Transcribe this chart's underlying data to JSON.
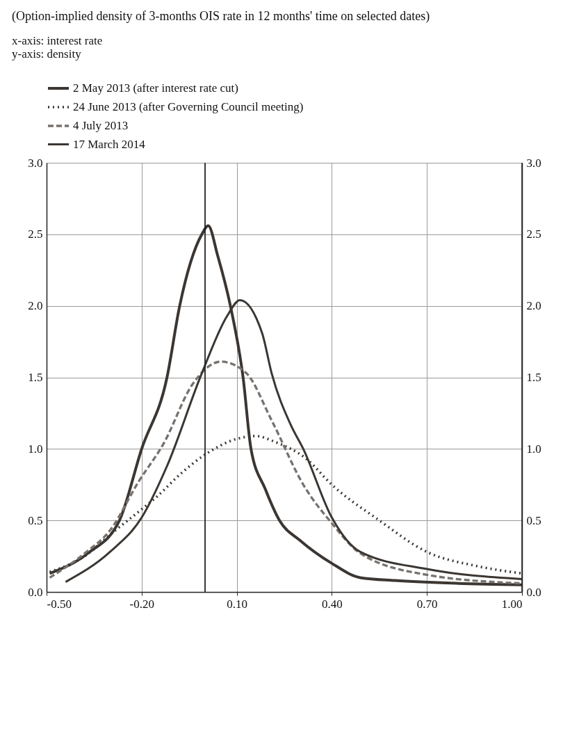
{
  "chart_data": {
    "type": "line",
    "title": "(Option-implied density of 3-months OIS rate in 12 months' time on selected dates)",
    "annotations": [
      "x-axis: interest rate",
      "y-axis: density"
    ],
    "series": [
      {
        "name": "2 May 2013 (after interest rate cut)",
        "color": "#3b3632",
        "line_style": "solid",
        "x": [
          -0.49,
          -0.37,
          -0.27,
          -0.2,
          -0.12,
          -0.08,
          -0.01,
          0.01,
          0.04,
          0.08,
          0.12,
          0.145,
          0.19,
          0.235,
          0.3,
          0.4,
          0.49,
          0.6,
          0.8,
          1.0
        ],
        "values": [
          0.13,
          0.27,
          0.5,
          1.0,
          1.5,
          2.0,
          2.5,
          2.56,
          2.35,
          2.0,
          1.5,
          1.0,
          0.72,
          0.5,
          0.36,
          0.2,
          0.1,
          0.08,
          0.06,
          0.05
        ]
      },
      {
        "name": "24 June 2013 (after Governing Council meeting)",
        "color": "#3b3632",
        "line_style": "dotted",
        "x": [
          -0.49,
          -0.38,
          -0.3,
          -0.21,
          -0.15,
          -0.08,
          0.0,
          0.1,
          0.16,
          0.22,
          0.32,
          0.4,
          0.55,
          0.7,
          0.86,
          1.0
        ],
        "values": [
          0.14,
          0.25,
          0.4,
          0.56,
          0.67,
          0.82,
          0.96,
          1.07,
          1.09,
          1.05,
          0.93,
          0.75,
          0.5,
          0.28,
          0.18,
          0.13
        ]
      },
      {
        "name": "4 July 2013",
        "color": "#77726e",
        "line_style": "dashed",
        "x": [
          -0.49,
          -0.38,
          -0.3,
          -0.21,
          -0.13,
          -0.04,
          0.05,
          0.13,
          0.21,
          0.31,
          0.4,
          0.49,
          0.7,
          1.0
        ],
        "values": [
          0.1,
          0.27,
          0.43,
          0.77,
          1.04,
          1.45,
          1.61,
          1.53,
          1.2,
          0.75,
          0.48,
          0.27,
          0.12,
          0.06
        ]
      },
      {
        "name": "17 March 2014",
        "color": "#3b3632",
        "line_style": "solid",
        "x": [
          -0.44,
          -0.3,
          -0.2,
          -0.12,
          -0.01,
          0.07,
          0.11,
          0.18,
          0.21,
          0.27,
          0.31,
          0.4,
          0.49,
          0.7,
          1.0
        ],
        "values": [
          0.07,
          0.28,
          0.52,
          0.88,
          1.53,
          1.93,
          2.04,
          1.81,
          1.53,
          1.17,
          1.0,
          0.52,
          0.28,
          0.16,
          0.09
        ]
      }
    ],
    "xlim": [
      -0.5,
      1.0
    ],
    "xticks": [
      {
        "value": -0.5,
        "label": "-0.50"
      },
      {
        "value": -0.2,
        "label": "-0.20"
      },
      {
        "value": 0.1,
        "label": "0.10"
      },
      {
        "value": 0.4,
        "label": "0.40"
      },
      {
        "value": 0.7,
        "label": "0.70"
      },
      {
        "value": 1.0,
        "label": "1.00"
      }
    ],
    "ylim": [
      0,
      3
    ],
    "yticks": [
      {
        "value": 0,
        "label": "0.0"
      },
      {
        "value": 0.5,
        "label": "0.5"
      },
      {
        "value": 1,
        "label": "1.0"
      },
      {
        "value": 1.5,
        "label": "1.5"
      },
      {
        "value": 2,
        "label": "2.0"
      },
      {
        "value": 2.5,
        "label": "2.5"
      },
      {
        "value": 3,
        "label": "3.0"
      }
    ],
    "y2lim": [
      0,
      3
    ],
    "y2ticks": [
      {
        "value": 0,
        "label": "0.0"
      },
      {
        "value": 0.5,
        "label": "0.5"
      },
      {
        "value": 1,
        "label": "1.0"
      },
      {
        "value": 1.5,
        "label": "1.5"
      },
      {
        "value": 2,
        "label": "2.0"
      },
      {
        "value": 2.5,
        "label": "2.5"
      },
      {
        "value": 3,
        "label": "3.0"
      }
    ],
    "ref_lines": [
      {
        "axis": "x",
        "value": 0.0
      }
    ],
    "grid": true,
    "legend": "top left"
  }
}
